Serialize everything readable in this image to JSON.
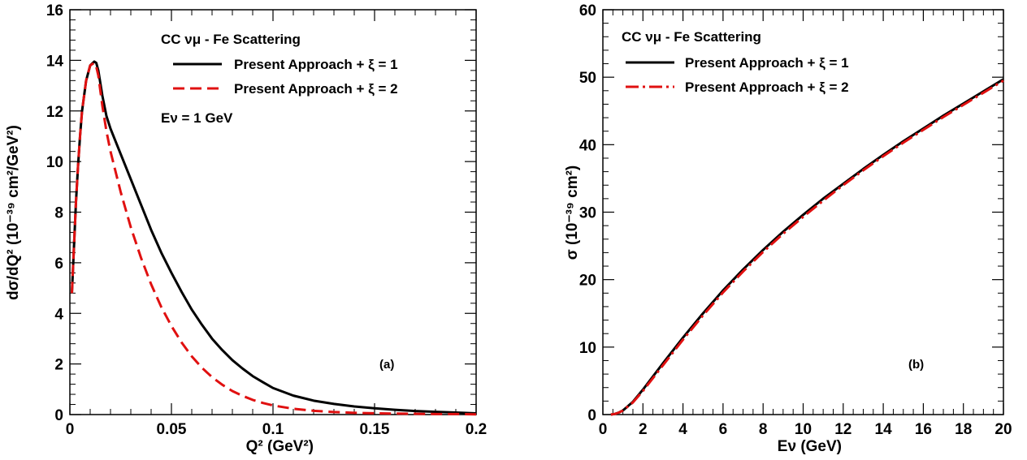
{
  "chart_data": [
    {
      "type": "line",
      "panel": "(a)",
      "xlabel": "Q² (GeV²)",
      "ylabel": "dσ/dQ²  (10⁻³⁹ cm²/GeV²)",
      "xlim": [
        0,
        0.2
      ],
      "ylim": [
        0,
        16
      ],
      "xticks": [
        "0",
        "0.05",
        "0.1",
        "0.15",
        "0.2"
      ],
      "yticks": [
        "0",
        "2",
        "4",
        "6",
        "8",
        "10",
        "12",
        "14",
        "16"
      ],
      "xtick_values": [
        0,
        0.05,
        0.1,
        0.15,
        0.2
      ],
      "ytick_values": [
        0,
        2,
        4,
        6,
        8,
        10,
        12,
        14,
        16
      ],
      "legend": {
        "header": "CC νμ - Fe Scattering",
        "entries": [
          "Present Approach + ξ = 1",
          "Present Approach + ξ = 2"
        ],
        "note": "Eν = 1 GeV",
        "placement": "top-right"
      },
      "series": [
        {
          "name": "Present Approach + ξ = 1",
          "color": "#000000",
          "dash": "solid",
          "x": [
            0.001,
            0.002,
            0.003,
            0.004,
            0.005,
            0.006,
            0.008,
            0.01,
            0.012,
            0.013,
            0.014,
            0.016,
            0.018,
            0.02,
            0.025,
            0.03,
            0.035,
            0.04,
            0.045,
            0.05,
            0.055,
            0.06,
            0.065,
            0.07,
            0.075,
            0.08,
            0.085,
            0.09,
            0.095,
            0.1,
            0.11,
            0.12,
            0.13,
            0.14,
            0.15,
            0.16,
            0.17,
            0.18,
            0.19,
            0.2
          ],
          "y": [
            4.8,
            6.6,
            8.4,
            9.8,
            11.0,
            12.0,
            13.2,
            13.8,
            13.95,
            13.9,
            13.6,
            12.6,
            11.8,
            11.3,
            10.3,
            9.3,
            8.3,
            7.3,
            6.4,
            5.6,
            4.85,
            4.15,
            3.55,
            3.0,
            2.55,
            2.15,
            1.82,
            1.52,
            1.28,
            1.05,
            0.75,
            0.55,
            0.42,
            0.32,
            0.25,
            0.19,
            0.14,
            0.11,
            0.08,
            0.05
          ]
        },
        {
          "name": "Present Approach + ξ = 2",
          "color": "#e01010",
          "dash": "dashed",
          "x": [
            0.001,
            0.002,
            0.003,
            0.004,
            0.005,
            0.006,
            0.008,
            0.01,
            0.012,
            0.013,
            0.014,
            0.016,
            0.018,
            0.02,
            0.025,
            0.03,
            0.035,
            0.04,
            0.045,
            0.05,
            0.055,
            0.06,
            0.065,
            0.07,
            0.075,
            0.08,
            0.085,
            0.09,
            0.095,
            0.1,
            0.11,
            0.12,
            0.13,
            0.14,
            0.15,
            0.16,
            0.17,
            0.18,
            0.19,
            0.2
          ],
          "y": [
            4.8,
            6.6,
            8.4,
            9.8,
            11.0,
            12.0,
            13.2,
            13.8,
            13.9,
            13.75,
            13.4,
            12.2,
            11.2,
            10.4,
            8.8,
            7.4,
            6.2,
            5.15,
            4.25,
            3.5,
            2.85,
            2.3,
            1.85,
            1.48,
            1.18,
            0.93,
            0.74,
            0.58,
            0.46,
            0.36,
            0.23,
            0.15,
            0.1,
            0.07,
            0.05,
            0.04,
            0.03,
            0.02,
            0.02,
            0.01
          ]
        }
      ]
    },
    {
      "type": "line",
      "panel": "(b)",
      "xlabel": "Eν (GeV)",
      "ylabel": "σ (10⁻³⁹ cm²)",
      "xlim": [
        0,
        20
      ],
      "ylim": [
        0,
        60
      ],
      "xticks": [
        "0",
        "2",
        "4",
        "6",
        "8",
        "10",
        "12",
        "14",
        "16",
        "18",
        "20"
      ],
      "yticks": [
        "0",
        "10",
        "20",
        "30",
        "40",
        "50",
        "60"
      ],
      "xtick_values": [
        0,
        2,
        4,
        6,
        8,
        10,
        12,
        14,
        16,
        18,
        20
      ],
      "ytick_values": [
        0,
        10,
        20,
        30,
        40,
        50,
        60
      ],
      "legend": {
        "header": "CC νμ - Fe Scattering",
        "entries": [
          "Present Approach + ξ = 1",
          "Present Approach + ξ = 2"
        ],
        "placement": "top-left"
      },
      "series": [
        {
          "name": "Present Approach + ξ = 1",
          "color": "#000000",
          "dash": "solid",
          "x": [
            0.4,
            0.6,
            0.8,
            1.0,
            1.5,
            2.0,
            3.0,
            4.0,
            5.0,
            6.0,
            7.0,
            8.0,
            9.0,
            10.0,
            11.0,
            12.0,
            13.0,
            14.0,
            15.0,
            16.0,
            17.0,
            18.0,
            19.0,
            20.0
          ],
          "y": [
            0.0,
            0.1,
            0.3,
            0.6,
            1.9,
            3.7,
            7.6,
            11.4,
            15.0,
            18.4,
            21.5,
            24.4,
            27.1,
            29.6,
            32.0,
            34.2,
            36.4,
            38.5,
            40.5,
            42.4,
            44.3,
            46.1,
            47.9,
            49.7
          ]
        },
        {
          "name": "Present Approach + ξ = 2",
          "color": "#e01010",
          "dash": "dashdot",
          "x": [
            0.4,
            0.6,
            0.8,
            1.0,
            1.5,
            2.0,
            3.0,
            4.0,
            5.0,
            6.0,
            7.0,
            8.0,
            9.0,
            10.0,
            11.0,
            12.0,
            13.0,
            14.0,
            15.0,
            16.0,
            17.0,
            18.0,
            19.0,
            20.0
          ],
          "y": [
            0.0,
            0.1,
            0.3,
            0.6,
            1.8,
            3.5,
            7.3,
            11.1,
            14.7,
            18.1,
            21.2,
            24.1,
            26.8,
            29.3,
            31.7,
            34.0,
            36.2,
            38.3,
            40.3,
            42.2,
            44.1,
            45.9,
            47.7,
            49.5
          ]
        }
      ]
    }
  ]
}
